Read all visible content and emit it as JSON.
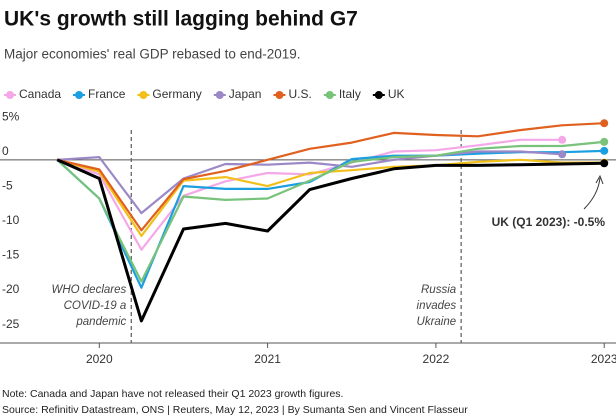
{
  "chart_data": {
    "type": "line",
    "title": "UK's growth still lagging behind G7",
    "subtitle": "Major economies' real GDP rebased to end-2019.",
    "x": [
      2019.75,
      2020,
      2020.25,
      2020.5,
      2020.75,
      2021,
      2021.25,
      2021.5,
      2021.75,
      2022,
      2022.25,
      2022.5,
      2022.75,
      2023
    ],
    "xlim": [
      2019.41,
      2023.07
    ],
    "xticks": [
      2020,
      2021,
      2022,
      2023
    ],
    "ylim": [
      -26.5,
      7.5
    ],
    "yticks": [
      {
        "value": 5,
        "label": "5%"
      },
      0,
      -5,
      -10,
      -15,
      -20,
      -25
    ],
    "series": [
      {
        "name": "Canada",
        "color": "#f4a8e8",
        "values": [
          0,
          -2.1,
          -13.0,
          -5.2,
          -3.1,
          -1.9,
          -2.1,
          -0.4,
          1.2,
          1.4,
          2.1,
          2.9,
          2.9,
          null
        ]
      },
      {
        "name": "France",
        "color": "#1a9fe0",
        "values": [
          0,
          -5.6,
          -18.5,
          -3.8,
          -4.2,
          -4.2,
          -3.2,
          0.1,
          0.6,
          0.6,
          0.9,
          1.1,
          1.1,
          1.3
        ]
      },
      {
        "name": "Germany",
        "color": "#f2c01b",
        "values": [
          0,
          -1.7,
          -11.0,
          -3.0,
          -2.5,
          -3.8,
          -1.9,
          -1.5,
          -1.0,
          -0.8,
          -0.3,
          0.0,
          -0.4,
          -0.4
        ]
      },
      {
        "name": "Japan",
        "color": "#9b88c6",
        "values": [
          0,
          0.4,
          -7.7,
          -2.7,
          -0.6,
          -0.7,
          -0.4,
          -1.0,
          0.0,
          0.6,
          1.2,
          1.2,
          0.8,
          null
        ]
      },
      {
        "name": "U.S.",
        "color": "#e0611f",
        "values": [
          0,
          -1.4,
          -10.2,
          -2.8,
          -1.6,
          0,
          1.6,
          2.5,
          3.9,
          3.6,
          3.4,
          4.3,
          5.0,
          5.3
        ]
      },
      {
        "name": "Italy",
        "color": "#78c27a",
        "values": [
          0,
          -5.6,
          -17.6,
          -5.3,
          -5.8,
          -5.6,
          -3.0,
          -0.3,
          0.4,
          0.6,
          1.6,
          2.0,
          2.0,
          2.6
        ]
      },
      {
        "name": "UK",
        "color": "#000000",
        "values": [
          0,
          -2.7,
          -23.3,
          -10.0,
          -9.2,
          -10.3,
          -4.3,
          -2.7,
          -1.3,
          -0.8,
          -0.8,
          -0.7,
          -0.6,
          -0.5
        ]
      }
    ],
    "annotations": [
      {
        "x": 2020.19,
        "lines": [
          "WHO declares",
          "COVID-19 a",
          "pandemic"
        ]
      },
      {
        "x": 2022.15,
        "lines": [
          "Russia",
          "invades",
          "Ukraine"
        ]
      }
    ],
    "uk_label": "UK (Q1 2023): -0.5%",
    "note": "Note: Canada and Japan have not released their Q1 2023 growth figures.",
    "source": "Source: Refinitiv Datastream, ONS | Reuters, May 12, 2023 | By Sumanta Sen and Vincent Flasseur"
  }
}
